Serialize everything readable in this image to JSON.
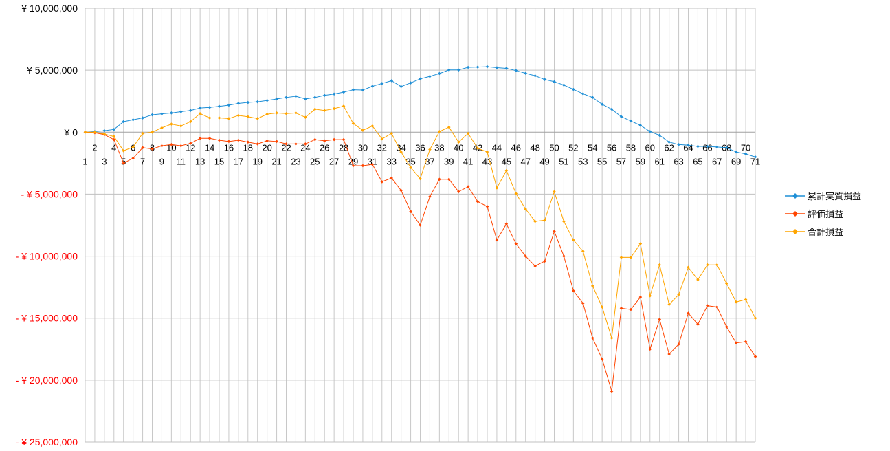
{
  "chart_data": {
    "type": "line",
    "title": "",
    "xlabel": "",
    "ylabel": "",
    "ylim": [
      -25000000,
      10000000
    ],
    "y_tick_step": 5000000,
    "y_tick_labels": [
      {
        "value": 10000000,
        "text": "¥ 10,000,000"
      },
      {
        "value": 5000000,
        "text": "¥ 5,000,000"
      },
      {
        "value": 0,
        "text": "¥ 0"
      },
      {
        "value": -5000000,
        "text": "- ¥ 5,000,000"
      },
      {
        "value": -10000000,
        "text": "- ¥ 10,000,000"
      },
      {
        "value": -15000000,
        "text": "- ¥ 15,000,000"
      },
      {
        "value": -20000000,
        "text": "- ¥ 20,000,000"
      },
      {
        "value": -25000000,
        "text": "- ¥ 25,000,000"
      }
    ],
    "negative_label_color": "#ff0000",
    "positive_label_color": "#000000",
    "grid": true,
    "legend_position": "right",
    "x_categories": [
      1,
      2,
      3,
      4,
      5,
      6,
      7,
      8,
      9,
      10,
      11,
      12,
      13,
      14,
      15,
      16,
      17,
      18,
      19,
      20,
      21,
      22,
      23,
      24,
      25,
      26,
      27,
      28,
      29,
      30,
      31,
      32,
      33,
      34,
      35,
      36,
      37,
      38,
      39,
      40,
      41,
      42,
      43,
      44,
      45,
      46,
      47,
      48,
      49,
      50,
      51,
      52,
      53,
      54,
      55,
      56,
      57,
      58,
      59,
      60,
      61,
      62,
      63,
      64,
      65,
      66,
      67,
      68,
      69,
      70,
      71
    ],
    "series": [
      {
        "name": "累計実質損益",
        "color": "#1f8fd6",
        "values": [
          0,
          50000,
          120000,
          220000,
          850000,
          1000000,
          1150000,
          1400000,
          1480000,
          1550000,
          1650000,
          1750000,
          1950000,
          2000000,
          2080000,
          2180000,
          2320000,
          2400000,
          2450000,
          2560000,
          2680000,
          2800000,
          2900000,
          2680000,
          2800000,
          2970000,
          3080000,
          3230000,
          3420000,
          3400000,
          3700000,
          3930000,
          4150000,
          3680000,
          3980000,
          4300000,
          4500000,
          4730000,
          5020000,
          5020000,
          5230000,
          5250000,
          5280000,
          5200000,
          5150000,
          4970000,
          4750000,
          4550000,
          4250000,
          4070000,
          3800000,
          3450000,
          3100000,
          2800000,
          2250000,
          1850000,
          1250000,
          900000,
          550000,
          50000,
          -250000,
          -800000,
          -1000000,
          -1050000,
          -1150000,
          -1150000,
          -1200000,
          -1250000,
          -1600000,
          -1750000,
          -2000000
        ]
      },
      {
        "name": "評価損益",
        "color": "#ff4500",
        "values": [
          0,
          -50000,
          -200000,
          -600000,
          -2500000,
          -2100000,
          -1250000,
          -1350000,
          -1100000,
          -1000000,
          -1100000,
          -900000,
          -500000,
          -500000,
          -650000,
          -750000,
          -650000,
          -800000,
          -950000,
          -700000,
          -750000,
          -950000,
          -950000,
          -950000,
          -600000,
          -700000,
          -600000,
          -600000,
          -2700000,
          -2700000,
          -2600000,
          -4000000,
          -3700000,
          -4700000,
          -6400000,
          -7500000,
          -5200000,
          -3800000,
          -3800000,
          -4800000,
          -4400000,
          -5600000,
          -6000000,
          -8700000,
          -7400000,
          -9000000,
          -10000000,
          -10800000,
          -10400000,
          -8000000,
          -10000000,
          -12800000,
          -13800000,
          -16600000,
          -18300000,
          -20900000,
          -14200000,
          -14300000,
          -13300000,
          -17500000,
          -15100000,
          -17900000,
          -17100000,
          -14600000,
          -15500000,
          -14000000,
          -14100000,
          -15700000,
          -17000000,
          -16900000,
          -18100000
        ]
      },
      {
        "name": "合計損益",
        "color": "#ffa500",
        "values": [
          0,
          0,
          -150000,
          -350000,
          -1500000,
          -1200000,
          -100000,
          0,
          350000,
          650000,
          500000,
          850000,
          1500000,
          1150000,
          1150000,
          1100000,
          1350000,
          1250000,
          1100000,
          1450000,
          1550000,
          1500000,
          1550000,
          1200000,
          1850000,
          1750000,
          1900000,
          2100000,
          700000,
          150000,
          500000,
          -550000,
          -100000,
          -1600000,
          -2850000,
          -3750000,
          -1400000,
          50000,
          400000,
          -800000,
          -100000,
          -1300000,
          -1600000,
          -4500000,
          -3100000,
          -4950000,
          -6200000,
          -7200000,
          -7100000,
          -4800000,
          -7200000,
          -8700000,
          -9600000,
          -12400000,
          -14100000,
          -16600000,
          -10100000,
          -10100000,
          -9000000,
          -13200000,
          -10700000,
          -13900000,
          -13100000,
          -10900000,
          -11900000,
          -10700000,
          -10700000,
          -12200000,
          -13700000,
          -13500000,
          -15000000
        ]
      }
    ]
  }
}
